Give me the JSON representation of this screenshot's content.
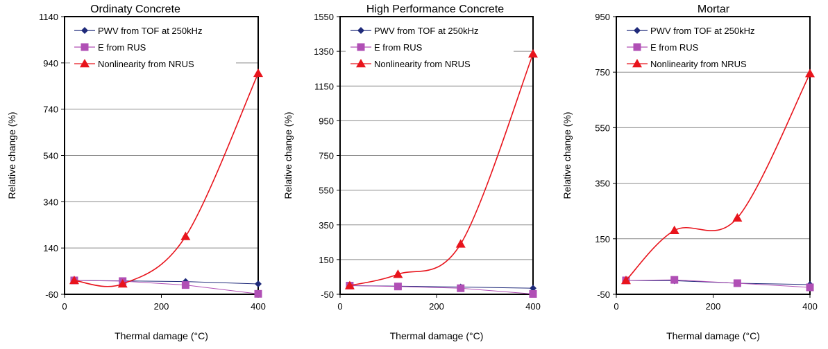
{
  "chart_data": [
    {
      "type": "line",
      "title": "Ordinaty Concrete",
      "xlabel": "Thermal damage (°C)",
      "ylabel": "Relative change (%)",
      "xlim": [
        0,
        400
      ],
      "ylim": [
        -60,
        1140
      ],
      "xticks": [
        0,
        200,
        400
      ],
      "yticks": [
        -60,
        140,
        340,
        540,
        740,
        940,
        1140
      ],
      "grid": "horizontal",
      "legend_position": "top",
      "series": [
        {
          "name": "PWV from TOF at 250kHz",
          "marker": "diamond",
          "color": "#1f2a7a",
          "x": [
            20,
            120,
            250,
            400
          ],
          "y": [
            0,
            -2,
            -5,
            -15
          ]
        },
        {
          "name": "E from RUS",
          "marker": "square",
          "color": "#b04fb5",
          "x": [
            20,
            120,
            250,
            400
          ],
          "y": [
            0,
            -3,
            -20,
            -58
          ]
        },
        {
          "name": "Nonlinearity from NRUS",
          "marker": "triangle",
          "color": "#e8141c",
          "x": [
            20,
            120,
            250,
            400
          ],
          "y": [
            0,
            -15,
            190,
            895
          ]
        }
      ]
    },
    {
      "type": "line",
      "title": "High Performance Concrete",
      "xlabel": "Thermal damage (°C)",
      "ylabel": "Relative change (%)",
      "xlim": [
        0,
        400
      ],
      "ylim": [
        -50,
        1550
      ],
      "xticks": [
        0,
        200,
        400
      ],
      "yticks": [
        -50,
        150,
        350,
        550,
        750,
        950,
        1150,
        1350,
        1550
      ],
      "grid": "horizontal",
      "legend_position": "top",
      "series": [
        {
          "name": "PWV from TOF at 250kHz",
          "marker": "diamond",
          "color": "#1f2a7a",
          "x": [
            20,
            120,
            250,
            400
          ],
          "y": [
            0,
            -3,
            -8,
            -15
          ]
        },
        {
          "name": "E from RUS",
          "marker": "square",
          "color": "#b04fb5",
          "x": [
            20,
            120,
            250,
            400
          ],
          "y": [
            0,
            -5,
            -15,
            -48
          ]
        },
        {
          "name": "Nonlinearity from NRUS",
          "marker": "triangle",
          "color": "#e8141c",
          "x": [
            20,
            120,
            250,
            400
          ],
          "y": [
            0,
            65,
            240,
            1335
          ]
        }
      ]
    },
    {
      "type": "line",
      "title": "Mortar",
      "xlabel": "Thermal damage (°C)",
      "ylabel": "Relative change (%)",
      "xlim": [
        0,
        400
      ],
      "ylim": [
        -50,
        950
      ],
      "xticks": [
        0,
        200,
        400
      ],
      "yticks": [
        -50,
        150,
        350,
        550,
        750,
        950
      ],
      "grid": "horizontal",
      "legend_position": "top",
      "series": [
        {
          "name": "PWV from TOF at 250kHz",
          "marker": "diamond",
          "color": "#1f2a7a",
          "x": [
            20,
            120,
            250,
            400
          ],
          "y": [
            0,
            -1,
            -10,
            -15
          ]
        },
        {
          "name": "E from RUS",
          "marker": "square",
          "color": "#b04fb5",
          "x": [
            20,
            120,
            250,
            400
          ],
          "y": [
            0,
            2,
            -10,
            -25
          ]
        },
        {
          "name": "Nonlinearity from NRUS",
          "marker": "triangle",
          "color": "#e8141c",
          "x": [
            20,
            120,
            250,
            400
          ],
          "y": [
            0,
            180,
            225,
            745
          ]
        }
      ]
    }
  ]
}
